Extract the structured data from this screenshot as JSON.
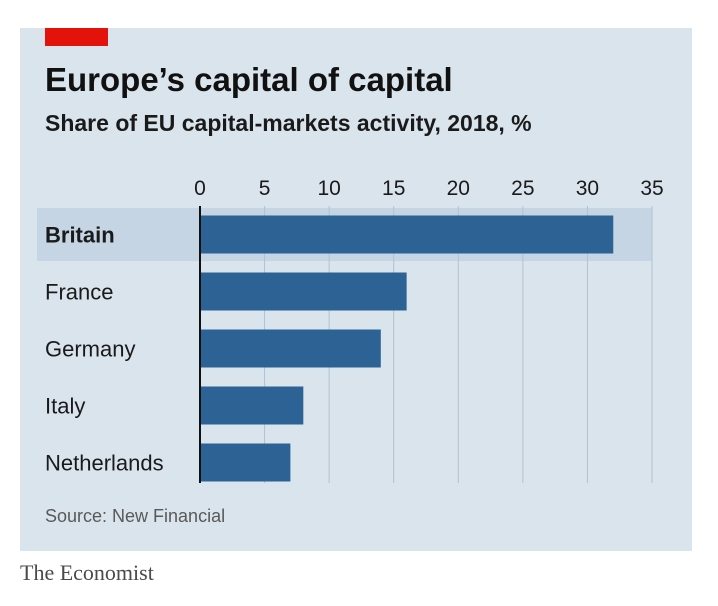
{
  "chart_data": {
    "type": "bar",
    "orientation": "horizontal",
    "title": "Europe’s capital of capital",
    "subtitle": "Share of EU capital-markets activity, 2018, %",
    "categories": [
      "Britain",
      "France",
      "Germany",
      "Italy",
      "Netherlands"
    ],
    "values": [
      32,
      16,
      14,
      8,
      7
    ],
    "xlim": [
      0,
      35
    ],
    "xticks": [
      0,
      5,
      10,
      15,
      20,
      25,
      30,
      35
    ],
    "grid": true,
    "highlighted_category": "Britain",
    "source": "Source: New Financial"
  },
  "branding": {
    "publisher": "The Economist"
  },
  "colors": {
    "accent": "#e3120b",
    "bar": "#2d6295",
    "panel_background": "#d9e4ed",
    "highlight_row": "#c5d5e3",
    "grid": "#b2c2d0"
  }
}
